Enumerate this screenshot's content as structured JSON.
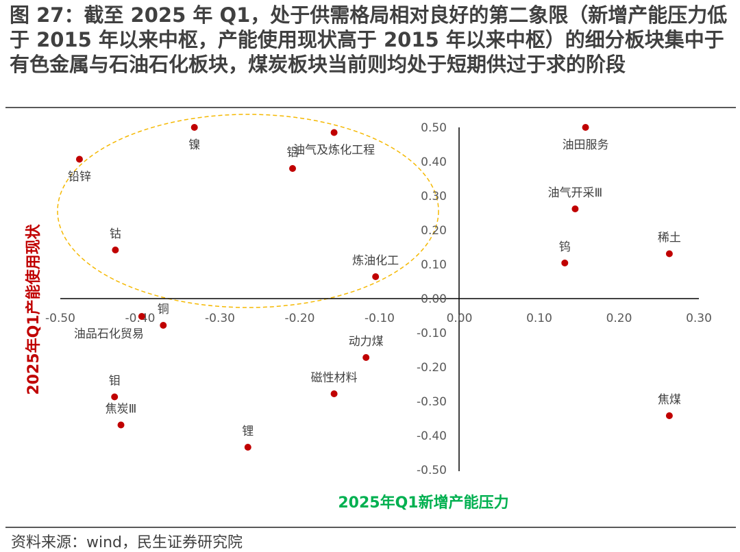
{
  "header": {
    "title": "图 27：截至 2025 年 Q1，处于供需格局相对良好的第二象限（新增产能压力低于 2015 年以来中枢，产能使用现状高于 2015 年以来中枢）的细分板块集中于有色金属与石油石化板块，煤炭板块当前则均处于短期供过于求的阶段"
  },
  "footer": {
    "source": "资料来源：wind，民生证券研究院"
  },
  "colors": {
    "point": "#c00000",
    "ellipse": "#f5b800",
    "ylabel": "#c00000",
    "xlabel": "#00b050"
  },
  "chart_data": {
    "type": "scatter",
    "title": "",
    "xlabel": "2025年Q1新增产能压力",
    "ylabel": "2025年Q1产能使用现状",
    "xlim": [
      -0.5,
      0.3
    ],
    "ylim": [
      -0.5,
      0.5
    ],
    "x_ticks": [
      "-0.50",
      "-0.40",
      "-0.30",
      "-0.20",
      "-0.10",
      "0.00",
      "0.10",
      "0.20",
      "0.30"
    ],
    "y_ticks": [
      "0.50",
      "0.40",
      "0.30",
      "0.20",
      "0.10",
      "0.00",
      "-0.10",
      "-0.20",
      "-0.30",
      "-0.40",
      "-0.50"
    ],
    "x_tick_values": [
      -0.5,
      -0.4,
      -0.3,
      -0.2,
      -0.1,
      0.0,
      0.1,
      0.2,
      0.3
    ],
    "y_tick_values": [
      0.5,
      0.4,
      0.3,
      0.2,
      0.1,
      0.0,
      -0.1,
      -0.2,
      -0.3,
      -0.4,
      -0.5
    ],
    "highlight": "ellipse around second-quadrant sectors (dashed)",
    "points": [
      {
        "label": "镍",
        "x": -0.332,
        "y": 0.5,
        "label_pos": "below"
      },
      {
        "label": "油气及炼化工程",
        "x": -0.157,
        "y": 0.485,
        "label_pos": "below"
      },
      {
        "label": "铝",
        "x": -0.209,
        "y": 0.38,
        "label_pos": "above"
      },
      {
        "label": "铅锌",
        "x": -0.476,
        "y": 0.407,
        "label_pos": "below"
      },
      {
        "label": "钴",
        "x": -0.431,
        "y": 0.142,
        "label_pos": "above"
      },
      {
        "label": "炼油化工",
        "x": -0.105,
        "y": 0.064,
        "label_pos": "above"
      },
      {
        "label": "铜",
        "x": -0.371,
        "y": -0.078,
        "label_pos": "above"
      },
      {
        "label": "油品石化贸易",
        "x": -0.398,
        "y": -0.052,
        "label_pos": "below"
      },
      {
        "label": "钼",
        "x": -0.432,
        "y": -0.287,
        "label_pos": "above"
      },
      {
        "label": "焦炭Ⅲ",
        "x": -0.424,
        "y": -0.369,
        "label_pos": "above"
      },
      {
        "label": "锂",
        "x": -0.265,
        "y": -0.434,
        "label_pos": "above"
      },
      {
        "label": "磁性材料",
        "x": -0.157,
        "y": -0.278,
        "label_pos": "above"
      },
      {
        "label": "动力煤",
        "x": -0.117,
        "y": -0.172,
        "label_pos": "above"
      },
      {
        "label": "油田服务",
        "x": 0.158,
        "y": 0.5,
        "label_pos": "below"
      },
      {
        "label": "油气开采Ⅲ",
        "x": 0.145,
        "y": 0.262,
        "label_pos": "above"
      },
      {
        "label": "钨",
        "x": 0.132,
        "y": 0.104,
        "label_pos": "above"
      },
      {
        "label": "稀土",
        "x": 0.263,
        "y": 0.131,
        "label_pos": "above"
      },
      {
        "label": "焦煤",
        "x": 0.263,
        "y": -0.342,
        "label_pos": "above"
      }
    ]
  }
}
